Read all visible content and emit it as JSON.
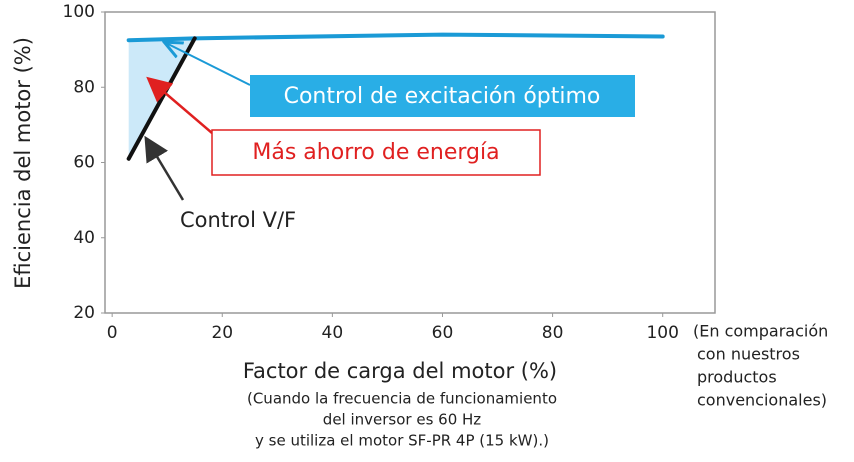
{
  "chart_data": {
    "type": "line",
    "x_label": "Factor de carga del motor (%)",
    "y_label": "Eficiencia del motor (%)",
    "xlim": [
      -1.3,
      109.5
    ],
    "xticks": [
      0,
      20,
      40,
      60,
      80,
      100
    ],
    "ylim": [
      20,
      100
    ],
    "yticks": [
      20,
      40,
      60,
      80,
      100
    ],
    "series": [
      {
        "name": "Control de excitación óptimo",
        "color": "#1a9ad6",
        "x": [
          3,
          15,
          60,
          100
        ],
        "values": [
          92.5,
          93,
          94,
          93.5
        ]
      },
      {
        "name": "Control V/F",
        "color": "#111111",
        "x": [
          3,
          15
        ],
        "values": [
          61,
          93
        ]
      }
    ],
    "annotations": {
      "savings": "Más ahorro de energía",
      "comparison": [
        "(En comparación",
        "con nuestros",
        "productos",
        "convencionales)"
      ],
      "note": [
        "(Cuando la frecuencia de funcionamiento",
        "del inversor es 60 Hz",
        "y se utiliza el motor SF-PR 4P (15 kW).)"
      ]
    }
  }
}
